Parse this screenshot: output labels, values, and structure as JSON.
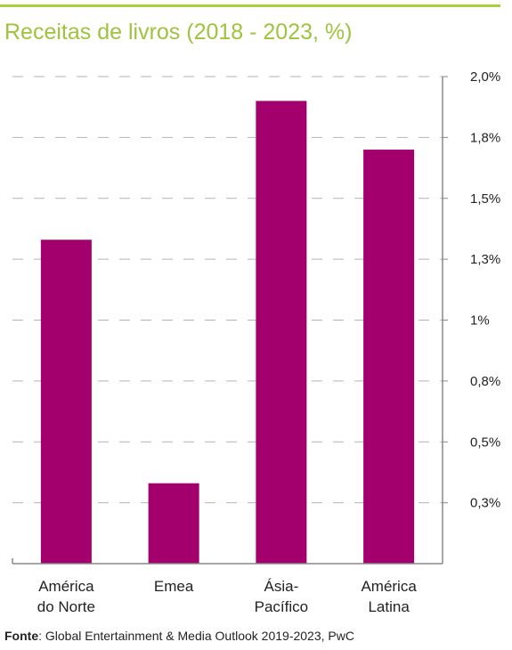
{
  "colors": {
    "accent": "#a8cf3a",
    "title": "#9dc43c",
    "bar": "#a3006e",
    "grid": "#b3b3b3",
    "axis": "#888888"
  },
  "chart_data": {
    "type": "bar",
    "title": "Receitas de livros (2018 - 2023, %)",
    "categories": [
      [
        "América",
        "do Norte"
      ],
      [
        "Emea"
      ],
      [
        "Ásia-",
        "Pacífico"
      ],
      [
        "América",
        "Latina"
      ]
    ],
    "values": [
      1.33,
      0.33,
      1.9,
      1.7
    ],
    "yticks": [
      0.25,
      0.5,
      0.75,
      1.0,
      1.25,
      1.5,
      1.75,
      2.0
    ],
    "ytick_labels": [
      "0,3%",
      "0,5%",
      "0,8%",
      "1%",
      "1,3%",
      "1,5%",
      "1,8%",
      "2,0%"
    ],
    "ylim": [
      0,
      2.0
    ],
    "grid": true,
    "axis_position": "right",
    "xlabel": "",
    "ylabel": ""
  },
  "source": {
    "label": "Fonte",
    "text": ": Global Entertainment & Media Outlook 2019-2023, PwC"
  }
}
